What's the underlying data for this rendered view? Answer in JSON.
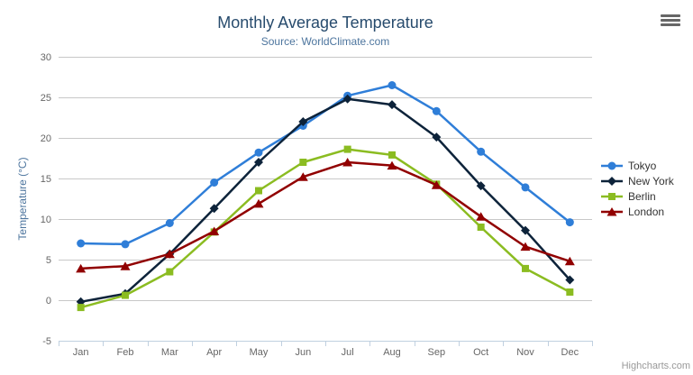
{
  "chart": {
    "title": "Monthly Average Temperature",
    "subtitle": "Source: WorldClimate.com",
    "credits": "Highcharts.com",
    "context_menu_icon": "hamburger-icon",
    "colors": {
      "title": "#274b6d",
      "subtitle": "#4d759e",
      "axis_title": "#4d759e",
      "axis_labels": "#666666",
      "gridline": "#c8c8c8",
      "axis_line": "#c0d0e0",
      "legend_text": "#333333",
      "credits_text": "#999999",
      "menu_icon": "#666666"
    }
  },
  "chart_data": {
    "type": "line",
    "title": "Monthly Average Temperature",
    "subtitle": "Source: WorldClimate.com",
    "categories": [
      "Jan",
      "Feb",
      "Mar",
      "Apr",
      "May",
      "Jun",
      "Jul",
      "Aug",
      "Sep",
      "Oct",
      "Nov",
      "Dec"
    ],
    "series": [
      {
        "name": "Tokyo",
        "color": "#2f7ed8",
        "marker": "circle",
        "values": [
          7.0,
          6.9,
          9.5,
          14.5,
          18.2,
          21.5,
          25.2,
          26.5,
          23.3,
          18.3,
          13.9,
          9.6
        ]
      },
      {
        "name": "New York",
        "color": "#0d233a",
        "marker": "diamond",
        "values": [
          -0.2,
          0.8,
          5.7,
          11.3,
          17.0,
          22.0,
          24.8,
          24.1,
          20.1,
          14.1,
          8.6,
          2.5
        ]
      },
      {
        "name": "Berlin",
        "color": "#8bbc21",
        "marker": "square",
        "values": [
          -0.9,
          0.6,
          3.5,
          8.4,
          13.5,
          17.0,
          18.6,
          17.9,
          14.3,
          9.0,
          3.9,
          1.0
        ]
      },
      {
        "name": "London",
        "color": "#910000",
        "marker": "triangle",
        "values": [
          3.9,
          4.2,
          5.7,
          8.5,
          11.9,
          15.2,
          17.0,
          16.6,
          14.2,
          10.3,
          6.6,
          4.8
        ]
      }
    ],
    "xlabel": "",
    "ylabel": "Temperature (°C)",
    "ylim": [
      -5,
      30
    ],
    "ytick_step": 5,
    "ytick_labels": [
      "-5",
      "0",
      "5",
      "10",
      "15",
      "20",
      "25",
      "30"
    ],
    "grid": true,
    "legend_position": "right"
  }
}
